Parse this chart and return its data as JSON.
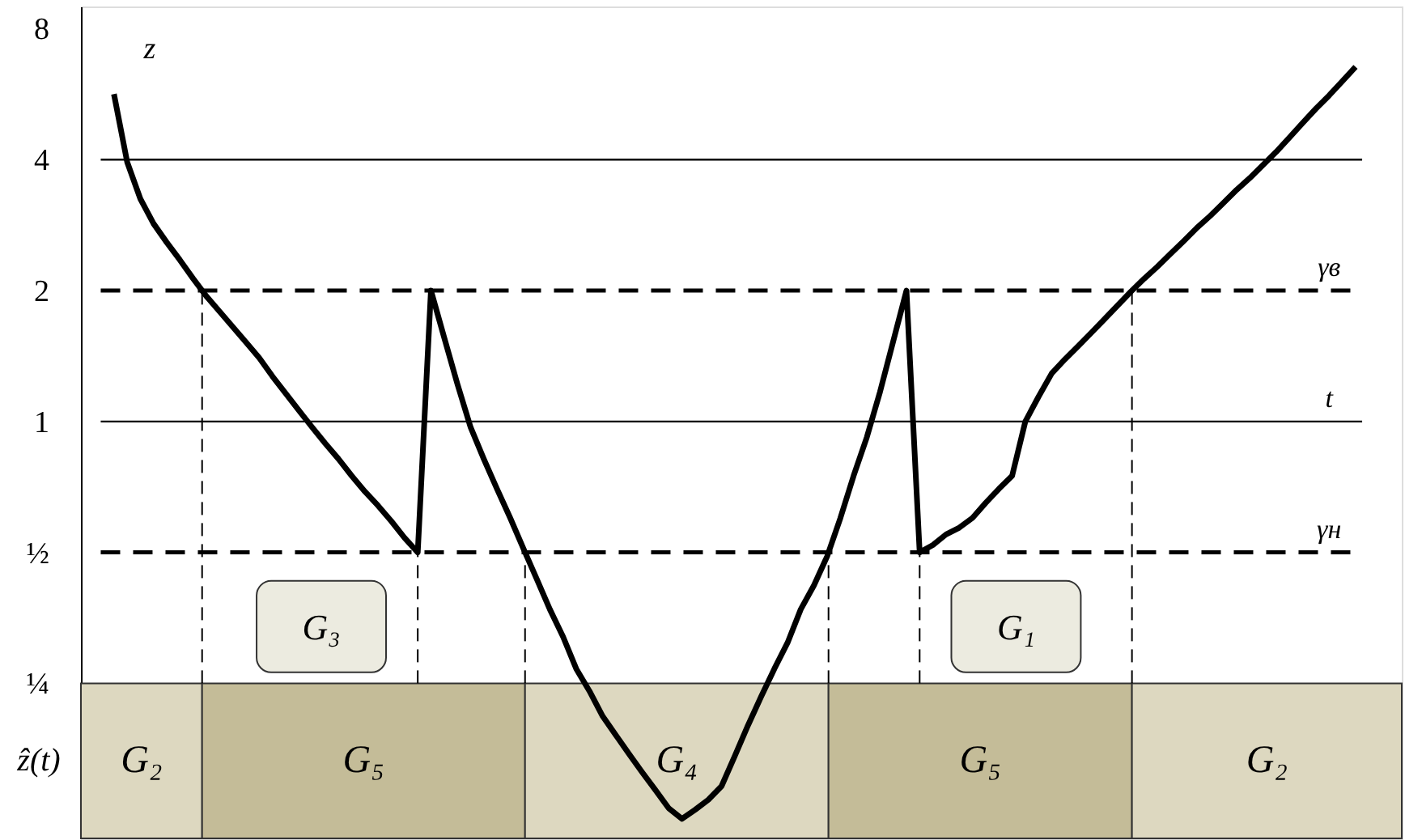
{
  "chart_data": {
    "type": "line",
    "categories": [
      null,
      null,
      null,
      null,
      null,
      null,
      null,
      null,
      null,
      null,
      null,
      null,
      null,
      null,
      null,
      null,
      null,
      null,
      null,
      null,
      null,
      null,
      null,
      null,
      null,
      null,
      null,
      null,
      null,
      null,
      null,
      null,
      null,
      null,
      null,
      null,
      null,
      null,
      null,
      null,
      null,
      null,
      null,
      null,
      null,
      null,
      null,
      null,
      null,
      null,
      null,
      null,
      null,
      null,
      null,
      null,
      null,
      null,
      null,
      null,
      null,
      null,
      null,
      null,
      null,
      null,
      null,
      null,
      null,
      null,
      null,
      null,
      null,
      null,
      null,
      null,
      null,
      null,
      null,
      null,
      null,
      null,
      null,
      null,
      null,
      null,
      null,
      null,
      null,
      null,
      null,
      null,
      null,
      null,
      null,
      null,
      null,
      null,
      null,
      null
    ],
    "series": [
      {
        "name": "z",
        "color": "#000000",
        "values": [
          null,
          null,
          5.66,
          3.95,
          3.25,
          2.85,
          2.58,
          2.35,
          2.13,
          1.94,
          1.79,
          1.65,
          1.52,
          1.4,
          1.27,
          1.16,
          1.06,
          0.97,
          0.89,
          0.82,
          0.75,
          0.69,
          0.64,
          0.59,
          0.54,
          0.5,
          2,
          1.56,
          1.22,
          0.97,
          0.82,
          0.7,
          0.6,
          0.51,
          0.435,
          0.37,
          0.32,
          0.27,
          0.24,
          0.21,
          0.19,
          0.172,
          0.156,
          0.142,
          0.129,
          0.122,
          0.128,
          0.135,
          0.145,
          0.17,
          0.2,
          0.233,
          0.27,
          0.31,
          0.37,
          0.42,
          0.49,
          0.6,
          0.75,
          0.92,
          1.17,
          1.53,
          2,
          0.5,
          0.52,
          0.55,
          0.57,
          0.6,
          0.65,
          0.7,
          0.75,
          1.0,
          1.14,
          1.29,
          1.39,
          1.49,
          1.6,
          1.72,
          1.85,
          1.99,
          2.13,
          2.27,
          2.43,
          2.6,
          2.79,
          2.97,
          3.18,
          3.41,
          3.63,
          3.89,
          4.17,
          4.5,
          4.86,
          5.24,
          5.62,
          6.06,
          6.54,
          null,
          null,
          null
        ]
      }
    ],
    "ylim": [
      0.11,
      9
    ],
    "log": true,
    "yticks": [
      {
        "value": 0.25,
        "label": "¼"
      },
      {
        "value": 0.5,
        "label": "½"
      },
      1,
      2,
      4,
      8
    ],
    "tick_labels": "y",
    "grid": false,
    "marker": "none",
    "line_style": "solid",
    "ref_lines": [
      {
        "axis": "y",
        "value": 4,
        "label": null,
        "color": "#000000",
        "line_style": "solid"
      },
      {
        "axis": "y",
        "value": 2,
        "label": "γв",
        "color": "#000000",
        "line_style": "dashed"
      },
      {
        "axis": "y",
        "value": 1,
        "label": "t",
        "color": "#000000",
        "line_style": "solid"
      },
      {
        "axis": "y",
        "value": 0.5,
        "label": "γн",
        "color": "#000000",
        "line_style": "dashed"
      }
    ],
    "annotations": [
      {
        "text": "G₃",
        "y": 0.5
      },
      {
        "text": "G₁",
        "y": 0.5
      },
      "ẑ(t)",
      "G₂",
      "G₅",
      "G₄",
      "G₅",
      "G₂"
    ]
  }
}
